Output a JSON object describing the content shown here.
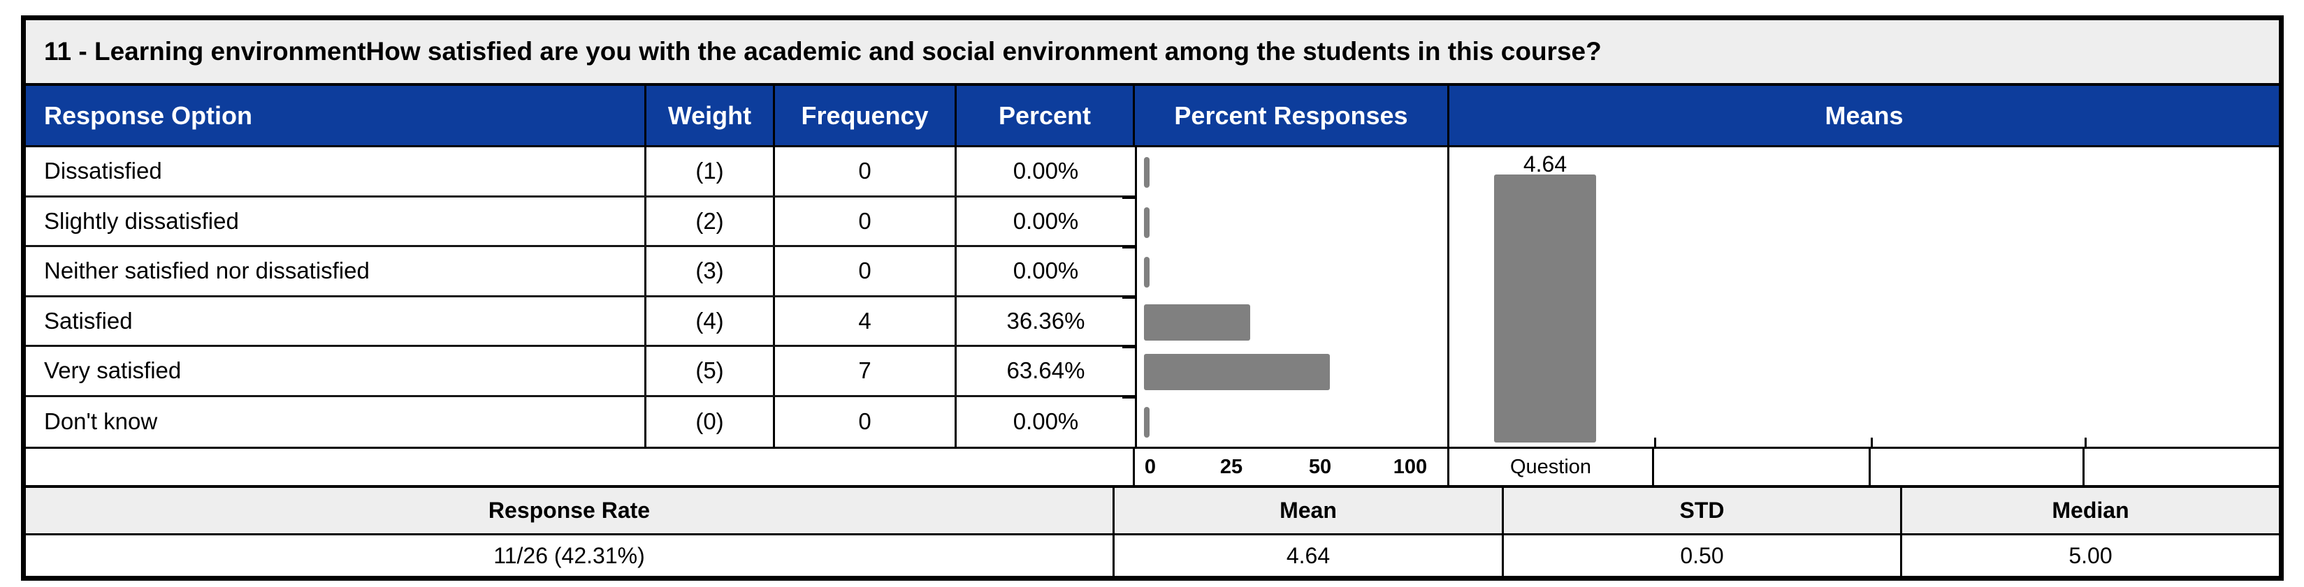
{
  "title": "11 - Learning environmentHow satisfied are you with the academic and social environment among the students in this course?",
  "table": {
    "headers": [
      "Response Option",
      "Weight",
      "Frequency",
      "Percent",
      "Percent Responses",
      "Means"
    ],
    "rows": [
      {
        "option": "Dissatisfied",
        "weight": "(1)",
        "frequency": "0",
        "percent": "0.00%"
      },
      {
        "option": "Slightly dissatisfied",
        "weight": "(2)",
        "frequency": "0",
        "percent": "0.00%"
      },
      {
        "option": "Neither satisfied nor dissatisfied",
        "weight": "(3)",
        "frequency": "0",
        "percent": "0.00%"
      },
      {
        "option": "Satisfied",
        "weight": "(4)",
        "frequency": "4",
        "percent": "36.36%"
      },
      {
        "option": "Very satisfied",
        "weight": "(5)",
        "frequency": "7",
        "percent": "63.64%"
      },
      {
        "option": "Don't know",
        "weight": "(0)",
        "frequency": "0",
        "percent": "0.00%"
      }
    ]
  },
  "chart_data": [
    {
      "type": "bar",
      "title": "Percent Responses",
      "orientation": "horizontal",
      "categories": [
        "Dissatisfied",
        "Slightly dissatisfied",
        "Neither satisfied nor dissatisfied",
        "Satisfied",
        "Very satisfied",
        "Don't know"
      ],
      "values": [
        0,
        0,
        0,
        36.36,
        63.64,
        0
      ],
      "xlim": [
        0,
        100
      ],
      "tick_labels": [
        "0",
        "25",
        "50",
        "100"
      ],
      "grid": false,
      "bar_color": "#808080"
    },
    {
      "type": "bar",
      "title": "Means",
      "orientation": "vertical",
      "categories": [
        "Question"
      ],
      "values": [
        4.64
      ],
      "ylim": [
        0,
        5
      ],
      "bar_label": "4.64",
      "grid": false,
      "bar_color": "#808080"
    }
  ],
  "axis_row": {
    "ticks": [
      "0",
      "25",
      "50",
      "100"
    ],
    "question_label": "Question"
  },
  "summary": {
    "headers": [
      "Response Rate",
      "Mean",
      "STD",
      "Median"
    ],
    "values": [
      "11/26 (42.31%)",
      "4.64",
      "0.50",
      "5.00"
    ]
  },
  "colors": {
    "header_bg": "#0d3d9c",
    "header_text": "#ffffff",
    "title_bg": "#eeeeee",
    "summary_header_bg": "#eeeeee",
    "bar": "#808080",
    "border": "#000000"
  }
}
